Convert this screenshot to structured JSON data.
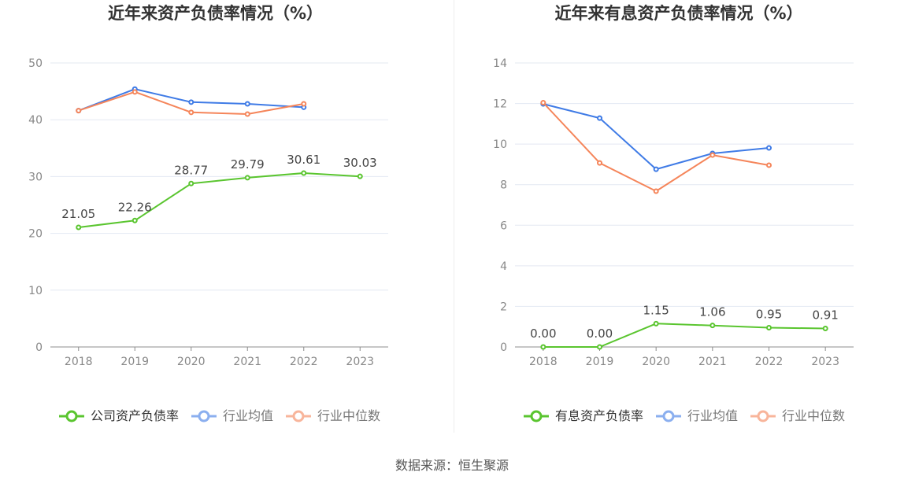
{
  "footer": {
    "source_text": "数据来源：恒生聚源"
  },
  "chart_data": [
    {
      "type": "line",
      "title": "近年来资产负债率情况（%）",
      "categories": [
        "2018",
        "2019",
        "2020",
        "2021",
        "2022",
        "2023"
      ],
      "ylim": [
        0,
        50
      ],
      "yticks": [
        0,
        10,
        20,
        30,
        40,
        50
      ],
      "grid": true,
      "legend_position": "bottom",
      "series": [
        {
          "name": "公司资产负债率",
          "color": "#5ac52f",
          "values": [
            21.05,
            22.26,
            28.77,
            29.79,
            30.61,
            30.03
          ],
          "show_data_labels": true
        },
        {
          "name": "行业均值",
          "color": "#3f7be6",
          "values": [
            41.6,
            45.4,
            43.1,
            42.8,
            42.2,
            null
          ],
          "show_data_labels": false
        },
        {
          "name": "行业中位数",
          "color": "#f5855a",
          "values": [
            41.6,
            44.9,
            41.3,
            41.0,
            42.8,
            null
          ],
          "show_data_labels": false
        }
      ]
    },
    {
      "type": "line",
      "title": "近年来有息资产负债率情况（%）",
      "categories": [
        "2018",
        "2019",
        "2020",
        "2021",
        "2022",
        "2023"
      ],
      "ylim": [
        0,
        14
      ],
      "yticks": [
        0,
        2,
        4,
        6,
        8,
        10,
        12,
        14
      ],
      "grid": true,
      "legend_position": "bottom",
      "series": [
        {
          "name": "有息资产负债率",
          "color": "#5ac52f",
          "values": [
            0.0,
            0.0,
            1.15,
            1.06,
            0.95,
            0.91
          ],
          "show_data_labels": true
        },
        {
          "name": "行业均值",
          "color": "#3f7be6",
          "values": [
            11.98,
            11.28,
            8.76,
            9.54,
            9.81,
            null
          ],
          "show_data_labels": false
        },
        {
          "name": "行业中位数",
          "color": "#f5855a",
          "values": [
            12.04,
            9.07,
            7.68,
            9.46,
            8.96,
            null
          ],
          "show_data_labels": false
        }
      ]
    }
  ]
}
